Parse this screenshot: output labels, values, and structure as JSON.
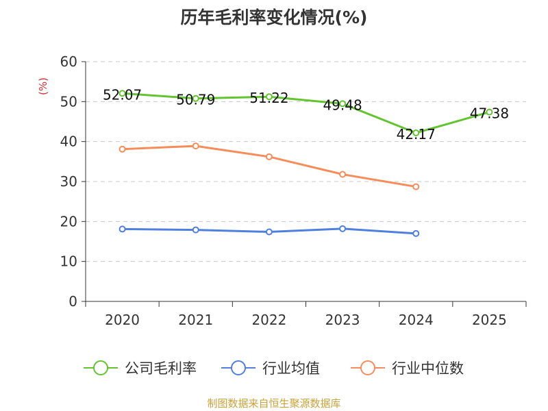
{
  "chart_data": {
    "type": "line",
    "title": "历年毛利率变化情况(%)",
    "ylabel": "(%)",
    "xlabel": "",
    "categories": [
      "2020",
      "2021",
      "2022",
      "2023",
      "2024",
      "2025"
    ],
    "ylim": [
      0,
      60
    ],
    "yticks": [
      0,
      10,
      20,
      30,
      40,
      50,
      60
    ],
    "grid": true,
    "legend_position": "bottom",
    "series": [
      {
        "name": "公司毛利率",
        "color": "#62c42e",
        "values": [
          52.07,
          50.79,
          51.22,
          49.48,
          42.17,
          47.38
        ],
        "labels": [
          "52.07",
          "50.79",
          "51.22",
          "49.48",
          "42.17",
          "47.38"
        ]
      },
      {
        "name": "行业均值",
        "color": "#4f7fdf",
        "values": [
          18.1,
          17.9,
          17.4,
          18.2,
          17.0,
          null
        ]
      },
      {
        "name": "行业中位数",
        "color": "#f68c5a",
        "values": [
          38.1,
          38.9,
          36.2,
          31.8,
          28.7,
          null
        ]
      }
    ]
  },
  "source": "制图数据来自恒生聚源数据库"
}
